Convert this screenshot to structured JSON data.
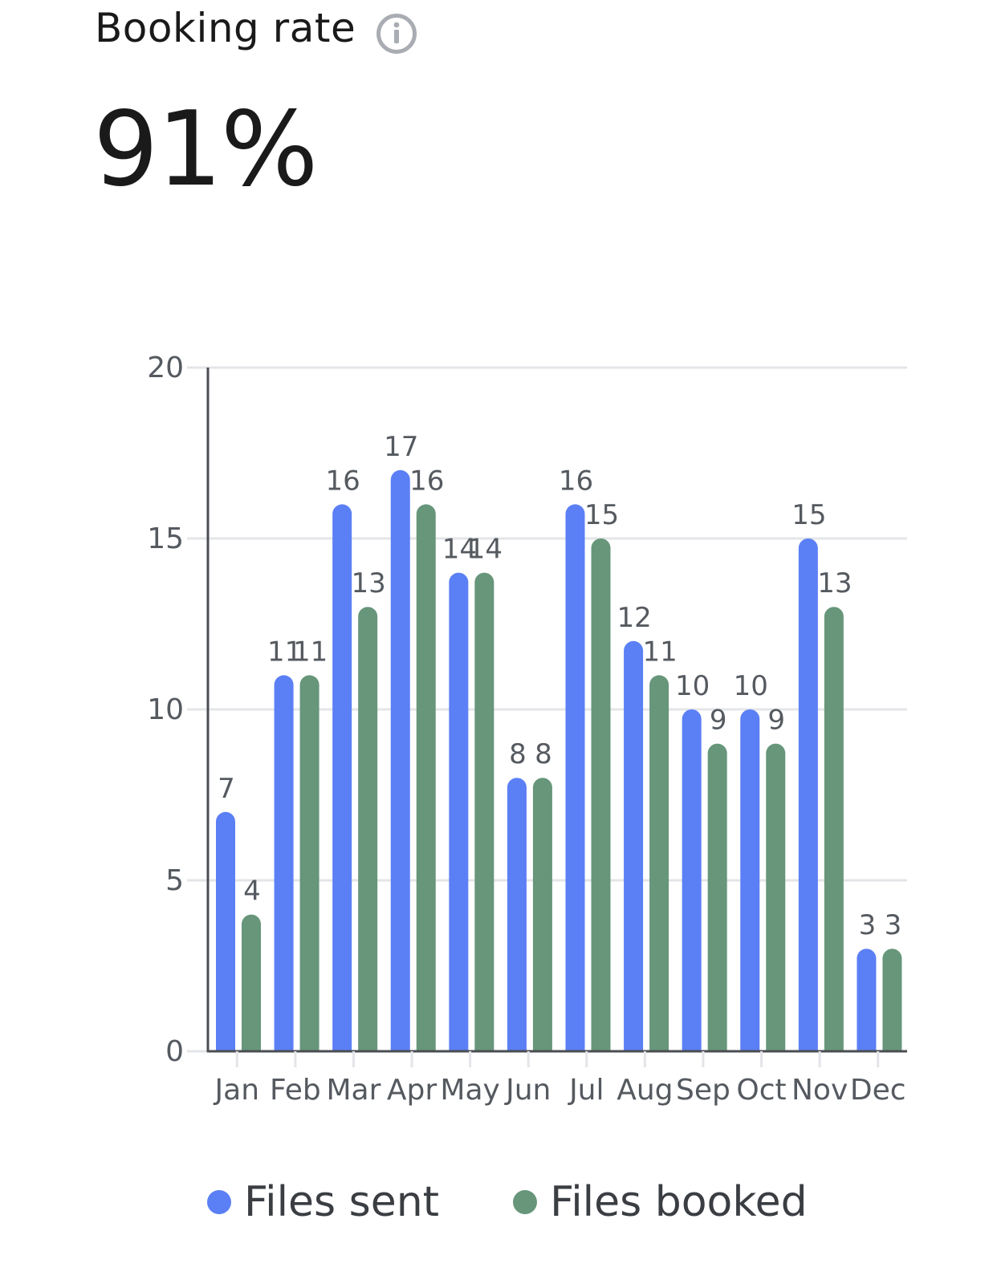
{
  "header": {
    "title": "Booking rate",
    "metric": "91%"
  },
  "icons": {
    "info": "info-icon"
  },
  "colors": {
    "files_sent": "#5b7ff5",
    "files_booked": "#67967a",
    "grid": "#e3e5e8",
    "axis": "#4a4d52"
  },
  "chart_data": {
    "type": "bar",
    "categories": [
      "Jan",
      "Feb",
      "Mar",
      "Apr",
      "May",
      "Jun",
      "Jul",
      "Aug",
      "Sep",
      "Oct",
      "Nov",
      "Dec"
    ],
    "series": [
      {
        "name": "Files sent",
        "values": [
          7,
          11,
          16,
          17,
          14,
          8,
          16,
          12,
          10,
          10,
          15,
          3
        ]
      },
      {
        "name": "Files booked",
        "values": [
          4,
          11,
          13,
          16,
          14,
          8,
          15,
          11,
          9,
          9,
          13,
          3
        ]
      }
    ],
    "ylim": [
      0,
      20
    ],
    "yticks": [
      "0",
      "5",
      "10",
      "15",
      "20"
    ],
    "grid": true,
    "data_labels": true,
    "legend": "bottom"
  }
}
